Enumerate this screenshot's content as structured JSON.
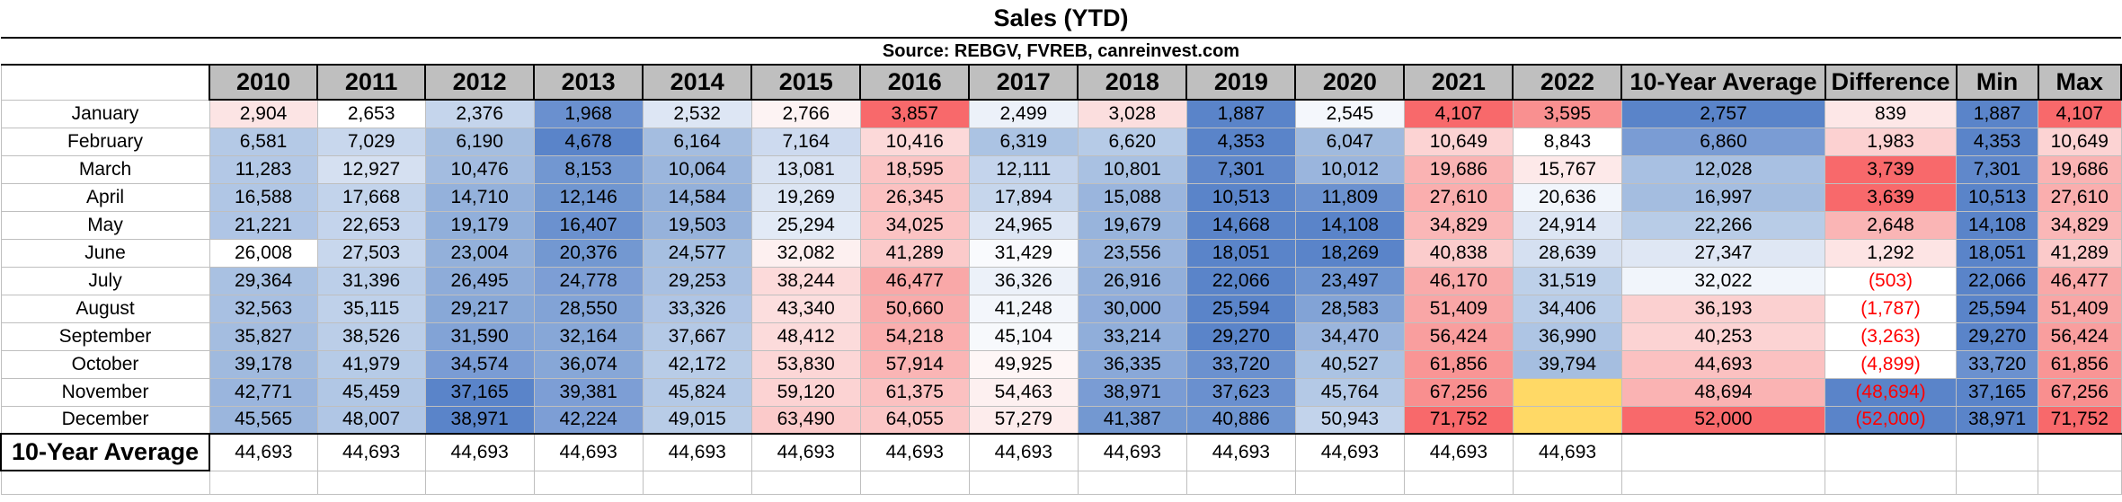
{
  "title": "Sales (YTD)",
  "source": "Source: REBGV, FVREB, canreinvest.com",
  "headers": [
    "2010",
    "2011",
    "2012",
    "2013",
    "2014",
    "2015",
    "2016",
    "2017",
    "2018",
    "2019",
    "2020",
    "2021",
    "2022",
    "10-Year Average",
    "Difference",
    "Min",
    "Max"
  ],
  "rows": [
    {
      "month": "January",
      "cells": [
        {
          "v": "2,904",
          "bg": "#fce4e4"
        },
        {
          "v": "2,653",
          "bg": "#ffffff"
        },
        {
          "v": "2,376",
          "bg": "#c5d5ec"
        },
        {
          "v": "1,968",
          "bg": "#6a90cf"
        },
        {
          "v": "2,532",
          "bg": "#dde6f4"
        },
        {
          "v": "2,766",
          "bg": "#fdf3f3"
        },
        {
          "v": "3,857",
          "bg": "#f8696b"
        },
        {
          "v": "2,499",
          "bg": "#ecf1f9"
        },
        {
          "v": "3,028",
          "bg": "#fbdede"
        },
        {
          "v": "1,887",
          "bg": "#5a84c9"
        },
        {
          "v": "2,545",
          "bg": "#f4f7fc"
        },
        {
          "v": "4,107",
          "bg": "#f8696b"
        },
        {
          "v": "3,595",
          "bg": "#f99090"
        },
        {
          "v": "2,757",
          "bg": "#5a84c9"
        },
        {
          "v": "839",
          "bg": "#fde7e7"
        },
        {
          "v": "1,887",
          "bg": "#5a84c9"
        },
        {
          "v": "4,107",
          "bg": "#f8696b"
        }
      ]
    },
    {
      "month": "February",
      "cells": [
        {
          "v": "6,581",
          "bg": "#b4c9e6"
        },
        {
          "v": "7,029",
          "bg": "#c8d7ed"
        },
        {
          "v": "6,190",
          "bg": "#a5bee0"
        },
        {
          "v": "4,678",
          "bg": "#5a84c9"
        },
        {
          "v": "6,164",
          "bg": "#a4bde0"
        },
        {
          "v": "7,164",
          "bg": "#cddaef"
        },
        {
          "v": "10,416",
          "bg": "#fcd9d9"
        },
        {
          "v": "6,319",
          "bg": "#abc3e3"
        },
        {
          "v": "6,620",
          "bg": "#b6cbe7"
        },
        {
          "v": "4,353",
          "bg": "#5a84c9"
        },
        {
          "v": "6,047",
          "bg": "#a0bade"
        },
        {
          "v": "10,649",
          "bg": "#fcd3d3"
        },
        {
          "v": "8,843",
          "bg": "#ffffff"
        },
        {
          "v": "6,860",
          "bg": "#7a9cd4"
        },
        {
          "v": "1,983",
          "bg": "#fcd1d1"
        },
        {
          "v": "4,353",
          "bg": "#5a84c9"
        },
        {
          "v": "10,649",
          "bg": "#fcd3d3"
        }
      ]
    },
    {
      "month": "March",
      "cells": [
        {
          "v": "11,283",
          "bg": "#b3c8e6"
        },
        {
          "v": "12,927",
          "bg": "#d5e0f1"
        },
        {
          "v": "10,476",
          "bg": "#a3bce0"
        },
        {
          "v": "8,153",
          "bg": "#7297d1"
        },
        {
          "v": "10,064",
          "bg": "#9bb6dd"
        },
        {
          "v": "13,081",
          "bg": "#d8e2f2"
        },
        {
          "v": "18,595",
          "bg": "#fbc4c4"
        },
        {
          "v": "12,111",
          "bg": "#c4d4ec"
        },
        {
          "v": "10,801",
          "bg": "#a9c1e2"
        },
        {
          "v": "7,301",
          "bg": "#6088cb"
        },
        {
          "v": "10,012",
          "bg": "#9ab5dd"
        },
        {
          "v": "19,686",
          "bg": "#fab3b3"
        },
        {
          "v": "15,767",
          "bg": "#fde9e9"
        },
        {
          "v": "12,028",
          "bg": "#a8c0e2"
        },
        {
          "v": "3,739",
          "bg": "#f8696b"
        },
        {
          "v": "7,301",
          "bg": "#6088cb"
        },
        {
          "v": "19,686",
          "bg": "#fab3b3"
        }
      ]
    },
    {
      "month": "April",
      "cells": [
        {
          "v": "16,588",
          "bg": "#b0c6e5"
        },
        {
          "v": "17,668",
          "bg": "#c2d3eb"
        },
        {
          "v": "14,710",
          "bg": "#94b1db"
        },
        {
          "v": "12,146",
          "bg": "#7096d0"
        },
        {
          "v": "14,584",
          "bg": "#93b0da"
        },
        {
          "v": "19,269",
          "bg": "#dce5f3"
        },
        {
          "v": "26,345",
          "bg": "#fbc1c1"
        },
        {
          "v": "17,894",
          "bg": "#c6d6ec"
        },
        {
          "v": "15,088",
          "bg": "#9ab5dd"
        },
        {
          "v": "10,513",
          "bg": "#5a84c9"
        },
        {
          "v": "11,809",
          "bg": "#6b91cf"
        },
        {
          "v": "27,610",
          "bg": "#faaeae"
        },
        {
          "v": "20,636",
          "bg": "#f1f5fb"
        },
        {
          "v": "16,997",
          "bg": "#a4bde0"
        },
        {
          "v": "3,639",
          "bg": "#f8696b"
        },
        {
          "v": "10,513",
          "bg": "#5a84c9"
        },
        {
          "v": "27,610",
          "bg": "#faaeae"
        }
      ]
    },
    {
      "month": "May",
      "cells": [
        {
          "v": "21,221",
          "bg": "#afc5e5"
        },
        {
          "v": "22,653",
          "bg": "#c4d4ec"
        },
        {
          "v": "19,179",
          "bg": "#91afda"
        },
        {
          "v": "16,407",
          "bg": "#6b91cf"
        },
        {
          "v": "19,503",
          "bg": "#96b2db"
        },
        {
          "v": "25,294",
          "bg": "#e2eaf6"
        },
        {
          "v": "34,025",
          "bg": "#fbc3c3"
        },
        {
          "v": "24,965",
          "bg": "#dde6f4"
        },
        {
          "v": "19,679",
          "bg": "#98b4dc"
        },
        {
          "v": "14,668",
          "bg": "#5a84c9"
        },
        {
          "v": "14,108",
          "bg": "#5a84c9"
        },
        {
          "v": "34,829",
          "bg": "#fab7b7"
        },
        {
          "v": "24,914",
          "bg": "#dde6f4"
        },
        {
          "v": "22,266",
          "bg": "#b8cce7"
        },
        {
          "v": "2,648",
          "bg": "#fab5b5"
        },
        {
          "v": "14,108",
          "bg": "#5a84c9"
        },
        {
          "v": "34,829",
          "bg": "#fab7b7"
        }
      ]
    },
    {
      "month": "June",
      "cells": [
        {
          "v": "26,008",
          "bg": "#b5caе6"
        },
        {
          "v": "27,503",
          "bg": "#c8d7ed"
        },
        {
          "v": "23,004",
          "bg": "#93b0da"
        },
        {
          "v": "20,376",
          "bg": "#7398d1"
        },
        {
          "v": "24,577",
          "bg": "#a6bfe1"
        },
        {
          "v": "32,082",
          "bg": "#fdf0f0"
        },
        {
          "v": "41,289",
          "bg": "#fbcaca"
        },
        {
          "v": "31,429",
          "bg": "#f9fafd"
        },
        {
          "v": "23,556",
          "bg": "#9ab5dd"
        },
        {
          "v": "18,051",
          "bg": "#5a84c9"
        },
        {
          "v": "18,269",
          "bg": "#5a84c9"
        },
        {
          "v": "40,838",
          "bg": "#fbcccc"
        },
        {
          "v": "28,639",
          "bg": "#d5e0f1"
        },
        {
          "v": "27,347",
          "bg": "#dfe7f4"
        },
        {
          "v": "1,292",
          "bg": "#fde4e4"
        },
        {
          "v": "18,051",
          "bg": "#5a84c9"
        },
        {
          "v": "41,289",
          "bg": "#fbcaca"
        }
      ]
    },
    {
      "month": "July",
      "cells": [
        {
          "v": "29,364",
          "bg": "#a9c1e2"
        },
        {
          "v": "31,396",
          "bg": "#bccfe9"
        },
        {
          "v": "26,495",
          "bg": "#8eacd9"
        },
        {
          "v": "24,778",
          "bg": "#7d9ed5"
        },
        {
          "v": "29,253",
          "bg": "#a8c0e2"
        },
        {
          "v": "38,244",
          "bg": "#fcdada"
        },
        {
          "v": "46,477",
          "bg": "#f9a8a8"
        },
        {
          "v": "36,326",
          "bg": "#ecf1f9"
        },
        {
          "v": "26,916",
          "bg": "#92afda"
        },
        {
          "v": "22,066",
          "bg": "#5a84c9"
        },
        {
          "v": "23,497",
          "bg": "#6e94d0"
        },
        {
          "v": "46,170",
          "bg": "#f9aaaa"
        },
        {
          "v": "31,519",
          "bg": "#bdd0e9"
        },
        {
          "v": "32,022",
          "bg": "#f1f5fb"
        },
        {
          "v": "(503)",
          "bg": "#ffffff",
          "neg": true
        },
        {
          "v": "22,066",
          "bg": "#5a84c9"
        },
        {
          "v": "46,477",
          "bg": "#f9a8a8"
        }
      ]
    },
    {
      "month": "August",
      "cells": [
        {
          "v": "32,563",
          "bg": "#a8c0e2"
        },
        {
          "v": "35,115",
          "bg": "#bfd1ea"
        },
        {
          "v": "29,217",
          "bg": "#88a8d7"
        },
        {
          "v": "28,550",
          "bg": "#82a3d6"
        },
        {
          "v": "33,326",
          "bg": "#afc5e5"
        },
        {
          "v": "43,340",
          "bg": "#fcdede"
        },
        {
          "v": "50,660",
          "bg": "#f9abab"
        },
        {
          "v": "41,248",
          "bg": "#f3f6fb"
        },
        {
          "v": "30,000",
          "bg": "#8facda"
        },
        {
          "v": "25,594",
          "bg": "#5a84c9"
        },
        {
          "v": "28,583",
          "bg": "#82a3d6"
        },
        {
          "v": "51,409",
          "bg": "#f9a6a6"
        },
        {
          "v": "34,406",
          "bg": "#b9cde8"
        },
        {
          "v": "36,193",
          "bg": "#fbd0d0"
        },
        {
          "v": "(1,787)",
          "bg": "#ffffff",
          "neg": true
        },
        {
          "v": "25,594",
          "bg": "#5a84c9"
        },
        {
          "v": "51,409",
          "bg": "#f9a6a6"
        }
      ]
    },
    {
      "month": "September",
      "cells": [
        {
          "v": "35,827",
          "bg": "#a4bde0"
        },
        {
          "v": "38,526",
          "bg": "#bbcee8"
        },
        {
          "v": "31,590",
          "bg": "#82a3d6"
        },
        {
          "v": "32,164",
          "bg": "#87a7d7"
        },
        {
          "v": "37,667",
          "bg": "#b4c9e6"
        },
        {
          "v": "48,412",
          "bg": "#fcdbdb"
        },
        {
          "v": "54,218",
          "bg": "#faaeae"
        },
        {
          "v": "45,104",
          "bg": "#f7f9fc"
        },
        {
          "v": "33,214",
          "bg": "#90aeda"
        },
        {
          "v": "29,270",
          "bg": "#5a84c9"
        },
        {
          "v": "34,470",
          "bg": "#9ab5dd"
        },
        {
          "v": "56,424",
          "bg": "#f99e9e"
        },
        {
          "v": "36,990",
          "bg": "#aec5e4"
        },
        {
          "v": "40,253",
          "bg": "#fcd3d3"
        },
        {
          "v": "(3,263)",
          "bg": "#ffffff",
          "neg": true
        },
        {
          "v": "29,270",
          "bg": "#5a84c9"
        },
        {
          "v": "56,424",
          "bg": "#f99e9e"
        }
      ]
    },
    {
      "month": "October",
      "cells": [
        {
          "v": "39,178",
          "bg": "#a0bade"
        },
        {
          "v": "41,979",
          "bg": "#b6cbe7"
        },
        {
          "v": "34,574",
          "bg": "#7a9cd4"
        },
        {
          "v": "36,074",
          "bg": "#87a7d7"
        },
        {
          "v": "42,172",
          "bg": "#b8cce7"
        },
        {
          "v": "53,830",
          "bg": "#fcd6d6"
        },
        {
          "v": "57,914",
          "bg": "#fab5b5"
        },
        {
          "v": "49,925",
          "bg": "#fef6f6"
        },
        {
          "v": "36,335",
          "bg": "#89a8d8"
        },
        {
          "v": "33,720",
          "bg": "#6b91cf"
        },
        {
          "v": "40,527",
          "bg": "#abc3e3"
        },
        {
          "v": "61,856",
          "bg": "#f99595"
        },
        {
          "v": "39,794",
          "bg": "#a5bee0"
        },
        {
          "v": "44,693",
          "bg": "#fbc1c1"
        },
        {
          "v": "(4,899)",
          "bg": "#ffffff",
          "neg": true
        },
        {
          "v": "33,720",
          "bg": "#6b91cf"
        },
        {
          "v": "61,856",
          "bg": "#f99595"
        }
      ]
    },
    {
      "month": "November",
      "cells": [
        {
          "v": "42,771",
          "bg": "#9ab5dd"
        },
        {
          "v": "45,459",
          "bg": "#b1c7e5"
        },
        {
          "v": "37,165",
          "bg": "#5a84c9"
        },
        {
          "v": "39,381",
          "bg": "#7d9ed5"
        },
        {
          "v": "45,824",
          "bg": "#b4c9e6"
        },
        {
          "v": "59,120",
          "bg": "#fcd3d3"
        },
        {
          "v": "61,375",
          "bg": "#fbc1c1"
        },
        {
          "v": "54,463",
          "bg": "#fdf0f0"
        },
        {
          "v": "38,971",
          "bg": "#7a9cd4"
        },
        {
          "v": "37,623",
          "bg": "#6a90cf"
        },
        {
          "v": "45,764",
          "bg": "#b4c9e6"
        },
        {
          "v": "67,256",
          "bg": "#f98f8f"
        },
        {
          "v": "",
          "bg": "#ffd966"
        },
        {
          "v": "48,694",
          "bg": "#fab3b3"
        },
        {
          "v": "(48,694)",
          "bg": "#5a84c9",
          "neg": true
        },
        {
          "v": "37,165",
          "bg": "#5a84c9"
        },
        {
          "v": "67,256",
          "bg": "#f98f8f"
        }
      ]
    },
    {
      "month": "December",
      "cells": [
        {
          "v": "45,565",
          "bg": "#9bb6dd"
        },
        {
          "v": "48,007",
          "bg": "#b0c6e5"
        },
        {
          "v": "38,971",
          "bg": "#5a84c9"
        },
        {
          "v": "42,224",
          "bg": "#7d9ed5"
        },
        {
          "v": "49,015",
          "bg": "#b8cce7"
        },
        {
          "v": "63,490",
          "bg": "#fbcaca"
        },
        {
          "v": "64,055",
          "bg": "#fbc6c6"
        },
        {
          "v": "57,279",
          "bg": "#fdecec"
        },
        {
          "v": "41,387",
          "bg": "#7398d1"
        },
        {
          "v": "40,886",
          "bg": "#6e94d0"
        },
        {
          "v": "50,943",
          "bg": "#c2d3eb"
        },
        {
          "v": "71,752",
          "bg": "#f8696b"
        },
        {
          "v": "",
          "bg": "#ffd966"
        },
        {
          "v": "52,000",
          "bg": "#f8696b"
        },
        {
          "v": "(52,000)",
          "bg": "#5a84c9",
          "neg": true
        },
        {
          "v": "38,971",
          "bg": "#5a84c9"
        },
        {
          "v": "71,752",
          "bg": "#f8696b"
        }
      ]
    }
  ],
  "avg_row": {
    "label": "10-Year Average",
    "values": [
      "44,693",
      "44,693",
      "44,693",
      "44,693",
      "44,693",
      "44,693",
      "44,693",
      "44,693",
      "44,693",
      "44,693",
      "44,693",
      "44,693",
      "44,693",
      "",
      "",
      "",
      ""
    ]
  }
}
